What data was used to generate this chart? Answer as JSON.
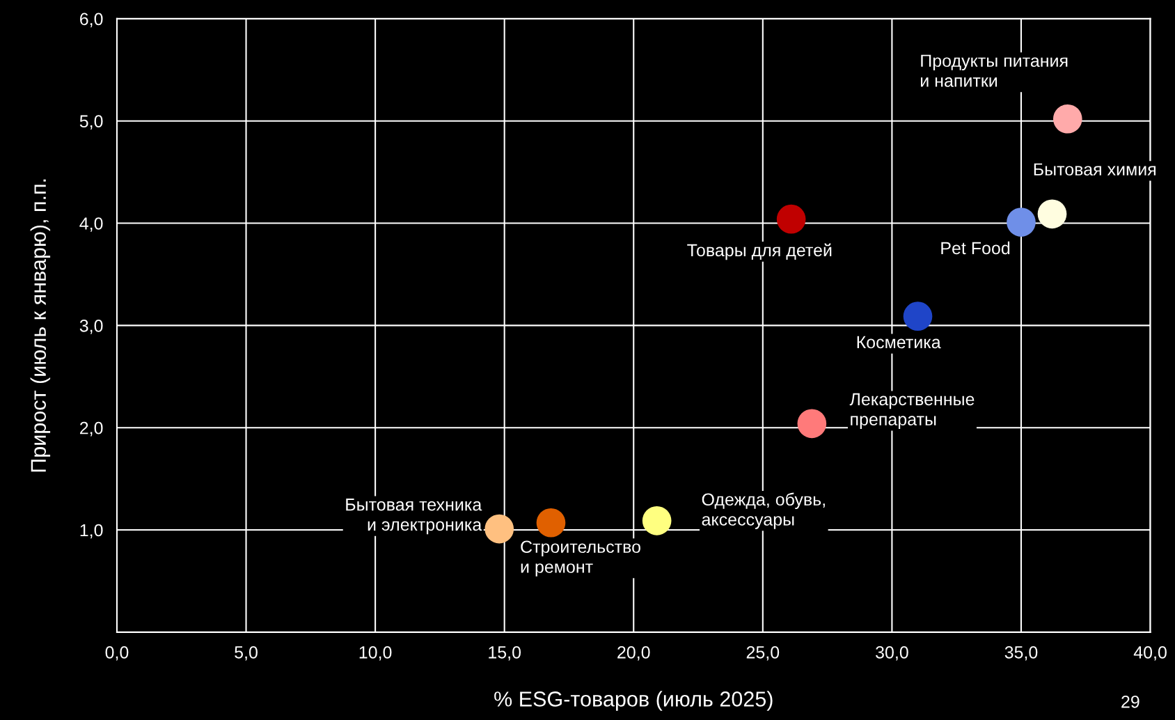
{
  "chart_data": {
    "type": "scatter",
    "xlabel": "% ESG-товаров (июль 2025)",
    "ylabel": "Прирост (июль к январю), п.п.",
    "xlim": [
      0,
      40
    ],
    "ylim": [
      0,
      6
    ],
    "xticks": [
      {
        "value": 0,
        "label": "0,0"
      },
      {
        "value": 5,
        "label": "5,0"
      },
      {
        "value": 10,
        "label": "10,0"
      },
      {
        "value": 15,
        "label": "15,0"
      },
      {
        "value": 20,
        "label": "20,0"
      },
      {
        "value": 25,
        "label": "25,0"
      },
      {
        "value": 30,
        "label": "30,0"
      },
      {
        "value": 35,
        "label": "35,0"
      },
      {
        "value": 40,
        "label": "40,0"
      }
    ],
    "yticks": [
      {
        "value": 1,
        "label": "1,0"
      },
      {
        "value": 2,
        "label": "2,0"
      },
      {
        "value": 3,
        "label": "3,0"
      },
      {
        "value": 4,
        "label": "4,0"
      },
      {
        "value": 5,
        "label": "5,0"
      },
      {
        "value": 6,
        "label": "6,0"
      }
    ],
    "grid": true,
    "legend": false,
    "marker": "circle",
    "series": [
      {
        "name": "Продукты питания\nи напитки",
        "color": "#ffaaaa",
        "x": [
          36.8
        ],
        "values": [
          5.02
        ]
      },
      {
        "name": "Бытовая химия",
        "color": "#fffde0",
        "x": [
          36.2
        ],
        "values": [
          4.09
        ]
      },
      {
        "name": "Pet Food",
        "color": "#6f8fe8",
        "x": [
          35.0
        ],
        "values": [
          4.01
        ]
      },
      {
        "name": "Товары для детей",
        "color": "#c00000",
        "x": [
          26.1
        ],
        "values": [
          4.04
        ]
      },
      {
        "name": "Косметика",
        "color": "#1f45c8",
        "x": [
          31.0
        ],
        "values": [
          3.09
        ]
      },
      {
        "name": "Лекарственные\nпрепараты",
        "color": "#ff7a7a",
        "x": [
          26.9
        ],
        "values": [
          2.04
        ]
      },
      {
        "name": "Бытовая техника\nи электроника",
        "color": "#ffc080",
        "x": [
          14.8
        ],
        "values": [
          1.01
        ]
      },
      {
        "name": "Строительство\nи ремонт",
        "color": "#e06000",
        "x": [
          16.8
        ],
        "values": [
          1.07
        ]
      },
      {
        "name": "Одежда, обувь,\nаксессуары",
        "color": "#ffff80",
        "x": [
          20.9
        ],
        "values": [
          1.09
        ]
      }
    ],
    "annotations": [
      "29"
    ]
  }
}
